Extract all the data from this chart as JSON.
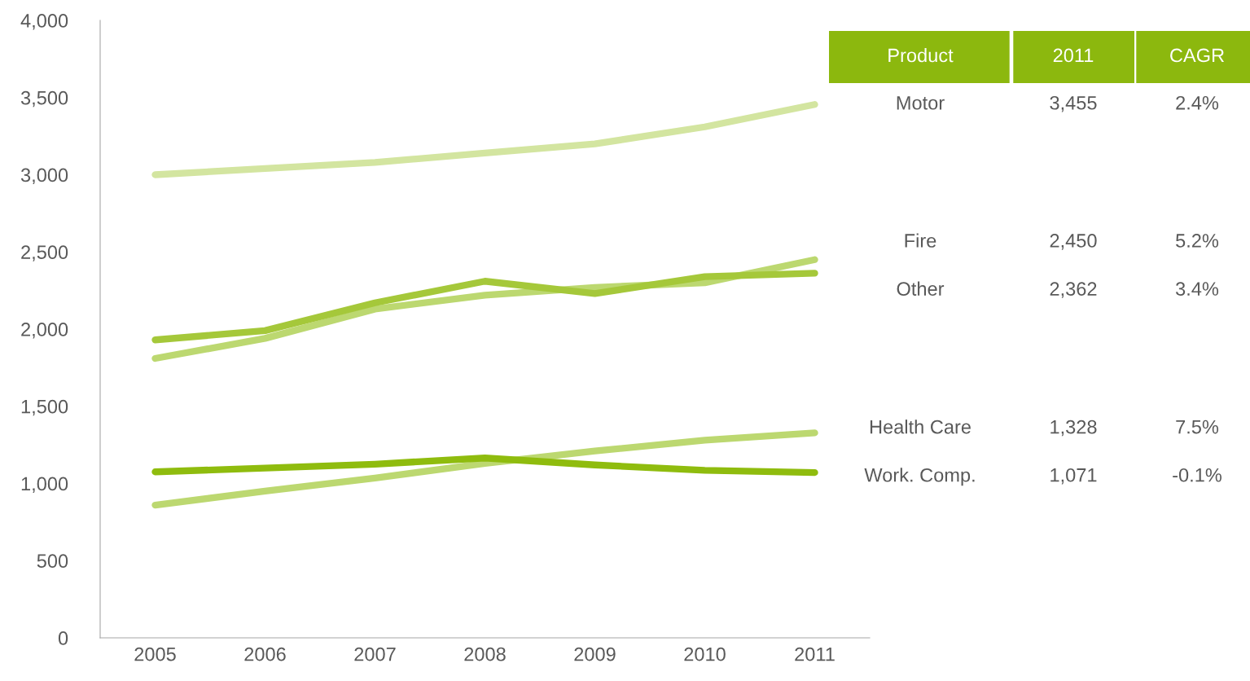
{
  "chart_data": {
    "type": "line",
    "categories": [
      "2005",
      "2006",
      "2007",
      "2008",
      "2009",
      "2010",
      "2011"
    ],
    "series": [
      {
        "name": "Motor",
        "color": "#d3e5a0",
        "values": [
          3000,
          3040,
          3080,
          3140,
          3200,
          3310,
          3455
        ]
      },
      {
        "name": "Fire",
        "color": "#bcd870",
        "values": [
          1810,
          1940,
          2130,
          2220,
          2270,
          2300,
          2450
        ]
      },
      {
        "name": "Other",
        "color": "#a5c83a",
        "values": [
          1930,
          1990,
          2170,
          2310,
          2230,
          2340,
          2362
        ]
      },
      {
        "name": "Health Care",
        "color": "#bcd870",
        "values": [
          860,
          950,
          1035,
          1130,
          1210,
          1280,
          1328
        ]
      },
      {
        "name": "Work. Comp.",
        "color": "#8fbc0e",
        "values": [
          1075,
          1100,
          1125,
          1165,
          1120,
          1085,
          1071
        ]
      }
    ],
    "annotations": [
      "Product",
      "2011",
      "CAGR",
      "3,455",
      "2.4%",
      "2,450",
      "5.2%",
      "2,362",
      "3.4%",
      "1,328",
      "7.5%",
      "1,071",
      "-0.1%"
    ],
    "ylim": [
      0,
      4000
    ],
    "yticks": [
      {
        "value": 0,
        "label": "0"
      },
      {
        "value": 500,
        "label": "500"
      },
      {
        "value": 1000,
        "label": "1,000"
      },
      {
        "value": 1500,
        "label": "1,500"
      },
      {
        "value": 2000,
        "label": "2,000"
      },
      {
        "value": 2500,
        "label": "2,500"
      },
      {
        "value": 3000,
        "label": "3,000"
      },
      {
        "value": 3500,
        "label": "3,500"
      },
      {
        "value": 4000,
        "label": "4,000"
      }
    ],
    "grid": false,
    "legend": false,
    "marker": "none",
    "line_style": "solid"
  }
}
